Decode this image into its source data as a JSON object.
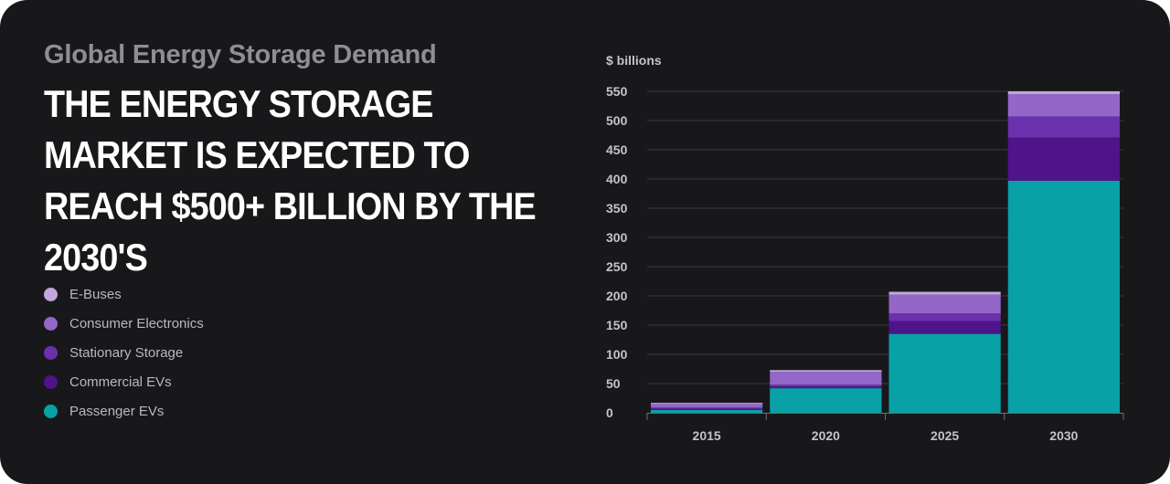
{
  "subtitle": "Global Energy Storage Demand",
  "headline": "THE ENERGY STORAGE MARKET IS EXPECTED TO REACH $500+ BILLION BY THE 2030'S",
  "colors": {
    "background": "#18181b",
    "E-Buses": "#c3a5df",
    "Consumer Electronics": "#9466c9",
    "Stationary Storage": "#6b31ad",
    "Commercial EVs": "#4f138a",
    "Passenger EVs": "#08a1a7"
  },
  "chart_data": {
    "type": "bar",
    "stacked": true,
    "ylabel": "$ billions",
    "ylim": [
      0,
      550
    ],
    "yticks": [
      0,
      50,
      100,
      150,
      200,
      250,
      300,
      350,
      400,
      450,
      500,
      550
    ],
    "grid": true,
    "legend_position": "left",
    "categories": [
      "2015",
      "2020",
      "2025",
      "2030"
    ],
    "series": [
      {
        "name": "Passenger EVs",
        "values": [
          5,
          42,
          135,
          397
        ]
      },
      {
        "name": "Commercial EVs",
        "values": [
          2,
          3,
          22,
          74
        ]
      },
      {
        "name": "Stationary Storage",
        "values": [
          2,
          3,
          13,
          36
        ]
      },
      {
        "name": "Consumer Electronics",
        "values": [
          6,
          22,
          32,
          38
        ]
      },
      {
        "name": "E-Buses",
        "values": [
          2,
          3,
          5,
          5
        ]
      }
    ],
    "legend_order": [
      "E-Buses",
      "Consumer Electronics",
      "Stationary Storage",
      "Commercial EVs",
      "Passenger EVs"
    ]
  }
}
